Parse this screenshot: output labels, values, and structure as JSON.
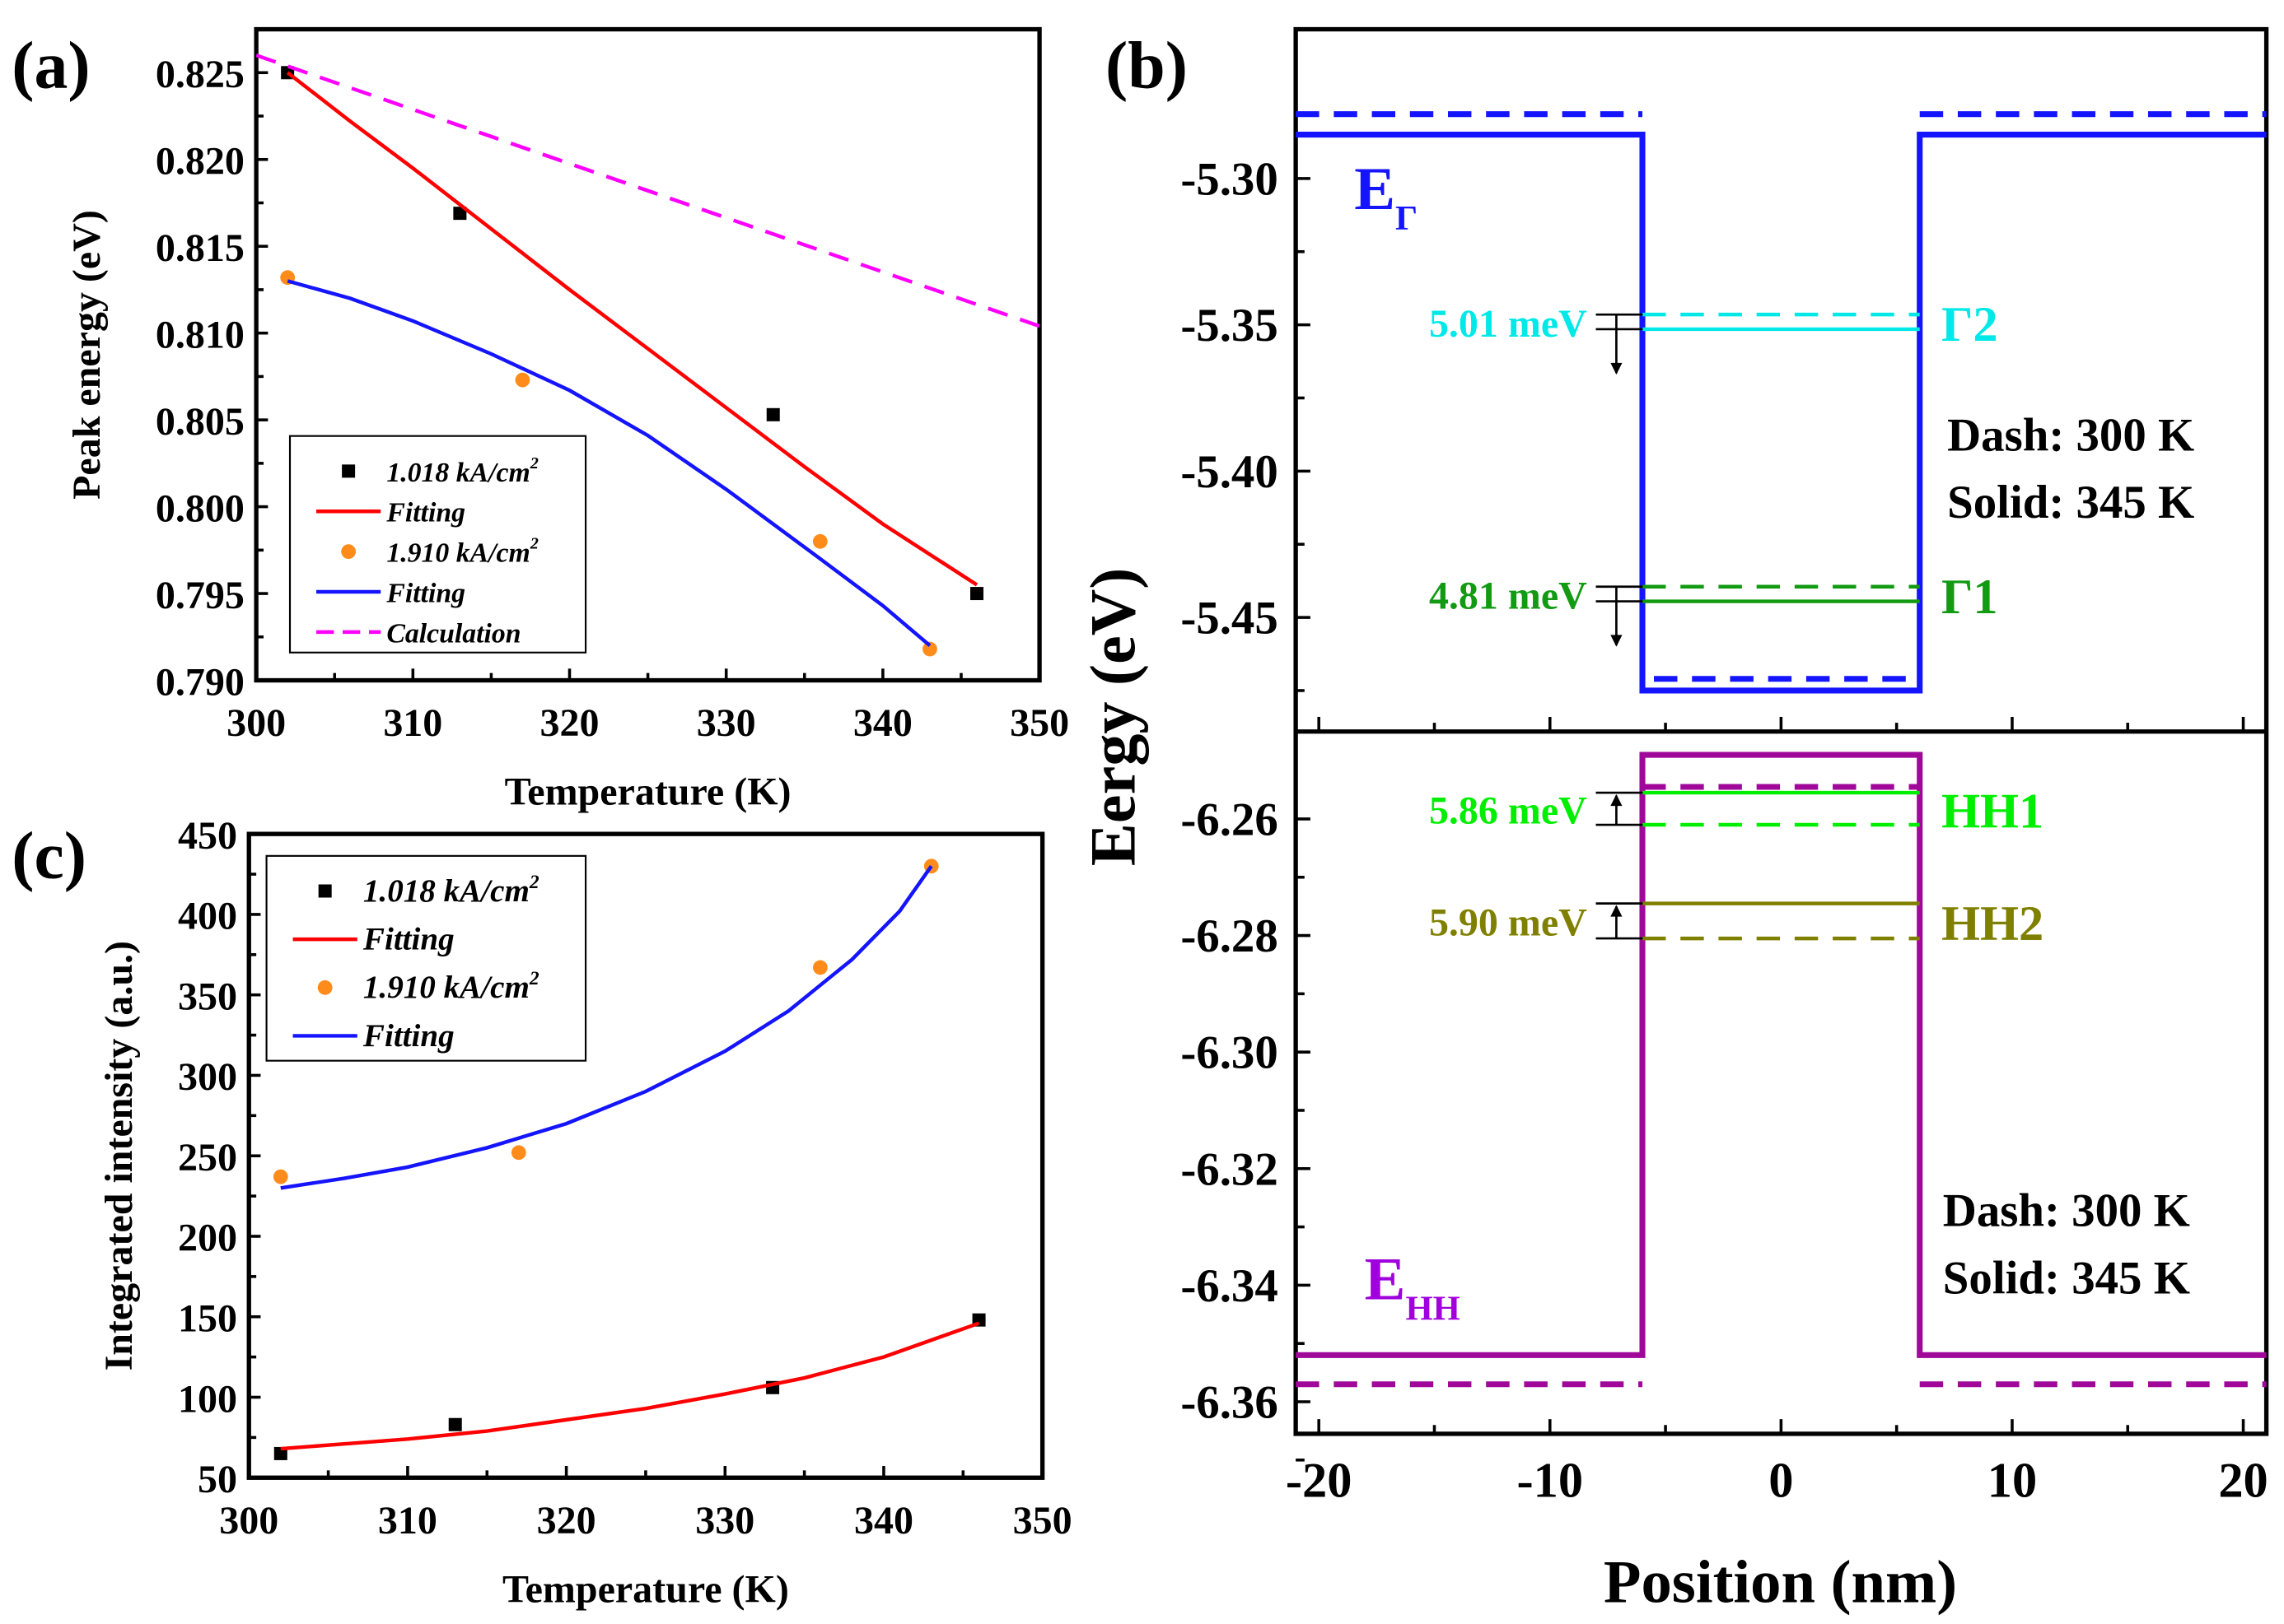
{
  "panel_labels": [
    "(a)",
    "(b)",
    "(c)"
  ],
  "colors": {
    "red": "#ff0000",
    "blue": "#1414ff",
    "magenta": "#ff00ff",
    "orange": "#ff8c1a",
    "cyan": "#00e8e8",
    "green": "#129a12",
    "lime": "#00ee00",
    "olive": "#808000",
    "purple": "#a0089a",
    "violet": "#a000dd"
  },
  "chart_data": [
    {
      "id": "a",
      "type": "scatter",
      "xlabel": "Temperature (K)",
      "ylabel": "Peak energy (eV)",
      "xlim": [
        300,
        350
      ],
      "ylim": [
        0.79,
        0.8275
      ],
      "xticks": [
        "300",
        "310",
        "320",
        "330",
        "340",
        "350"
      ],
      "yticks": [
        "0.790",
        "0.795",
        "0.800",
        "0.805",
        "0.810",
        "0.815",
        "0.820",
        "0.825"
      ],
      "legend_position": "bottom-left",
      "series": [
        {
          "name": "1.018 kA/cm",
          "sup": "2",
          "kind": "points",
          "marker": "square",
          "color": "#000000",
          "x": [
            302,
            313,
            333,
            346
          ],
          "y": [
            0.825,
            0.8169,
            0.8053,
            0.795
          ]
        },
        {
          "name": "Fitting",
          "kind": "line",
          "color": "#ff0000",
          "x": [
            302,
            306,
            310,
            315,
            320,
            325,
            330,
            335,
            340,
            346
          ],
          "y": [
            0.825,
            0.8222,
            0.8195,
            0.816,
            0.8125,
            0.8091,
            0.8057,
            0.8023,
            0.799,
            0.7955
          ]
        },
        {
          "name": "1.910 kA/cm",
          "sup": "2",
          "kind": "points",
          "marker": "circle",
          "color": "#ff8c1a",
          "x": [
            302,
            317,
            336,
            343
          ],
          "y": [
            0.8132,
            0.8073,
            0.798,
            0.7918
          ]
        },
        {
          "name": "Fitting",
          "kind": "line",
          "color": "#1414ff",
          "x": [
            302,
            306,
            310,
            315,
            320,
            325,
            330,
            336,
            340,
            343
          ],
          "y": [
            0.813,
            0.812,
            0.8107,
            0.8088,
            0.8067,
            0.8041,
            0.801,
            0.797,
            0.7943,
            0.792
          ]
        },
        {
          "name": "Calculation",
          "kind": "dash",
          "color": "#ff00ff",
          "x": [
            300,
            350
          ],
          "y": [
            0.826,
            0.8104
          ]
        }
      ]
    },
    {
      "id": "c",
      "type": "scatter",
      "xlabel": "Temperature (K)",
      "ylabel": "Integrated intensity (a.u.)",
      "xlim": [
        300,
        350
      ],
      "ylim": [
        50,
        450
      ],
      "xticks": [
        "300",
        "310",
        "320",
        "330",
        "340",
        "350"
      ],
      "yticks": [
        "50",
        "100",
        "150",
        "200",
        "250",
        "300",
        "350",
        "400",
        "450"
      ],
      "legend_position": "top-left",
      "series": [
        {
          "name": "1.018 kA/cm",
          "sup": "2",
          "kind": "points",
          "marker": "square",
          "color": "#000000",
          "x": [
            302,
            313,
            333,
            346
          ],
          "y": [
            65,
            83,
            106,
            148
          ]
        },
        {
          "name": "Fitting",
          "kind": "line",
          "color": "#ff0000",
          "x": [
            302,
            306,
            310,
            315,
            320,
            325,
            330,
            335,
            340,
            346
          ],
          "y": [
            68,
            71,
            74,
            79,
            86,
            93,
            102,
            112,
            125,
            146
          ]
        },
        {
          "name": "1.910 kA/cm",
          "sup": "2",
          "kind": "points",
          "marker": "circle",
          "color": "#ff8c1a",
          "x": [
            302,
            317,
            336,
            343
          ],
          "y": [
            237,
            252,
            367,
            430
          ]
        },
        {
          "name": "Fitting",
          "kind": "line",
          "color": "#1414ff",
          "x": [
            302,
            306,
            310,
            315,
            320,
            325,
            330,
            334,
            338,
            341,
            343
          ],
          "y": [
            230,
            236,
            243,
            255,
            270,
            290,
            315,
            340,
            372,
            402,
            430
          ]
        }
      ]
    },
    {
      "id": "b",
      "type": "line",
      "xlabel": "Position (nm)",
      "ylabel": "Eergy (eV)",
      "xlim": [
        -21,
        21
      ],
      "xticks": [
        "-20",
        "-10",
        "0",
        "10",
        "20"
      ],
      "top": {
        "ylim": [
          -5.489,
          -5.249
        ],
        "yticks": [
          "-5.30",
          "-5.35",
          "-5.40",
          "-5.45"
        ],
        "band_label": "E",
        "band_sub": "Γ",
        "lines": [
          {
            "name": "conduction-band-345K",
            "color": "#1414ff",
            "style": "solid",
            "x": [
              -21,
              -6,
              -6,
              6,
              6,
              21
            ],
            "y": [
              -5.285,
              -5.285,
              -5.475,
              -5.475,
              -5.285,
              -5.285
            ]
          },
          {
            "name": "conduction-band-300K-left",
            "color": "#1414ff",
            "style": "dash",
            "x": [
              -21,
              -6
            ],
            "y": [
              -5.278,
              -5.278
            ]
          },
          {
            "name": "conduction-band-300K-right",
            "color": "#1414ff",
            "style": "dash",
            "x": [
              6,
              21
            ],
            "y": [
              -5.278,
              -5.278
            ]
          },
          {
            "name": "conduction-band-300K-well",
            "color": "#1414ff",
            "style": "dash",
            "x": [
              -5.5,
              5.5
            ],
            "y": [
              -5.471,
              -5.471
            ]
          },
          {
            "name": "gamma2-300K",
            "color": "#00e8e8",
            "style": "dash",
            "x": [
              -6,
              6
            ],
            "y": [
              -5.3465,
              -5.3465
            ]
          },
          {
            "name": "gamma2-345K",
            "color": "#00e8e8",
            "style": "solid",
            "x": [
              -6,
              6
            ],
            "y": [
              -5.3515,
              -5.3515
            ]
          },
          {
            "name": "gamma1-300K",
            "color": "#129a12",
            "style": "dash",
            "x": [
              -6,
              6
            ],
            "y": [
              -5.4395,
              -5.4395
            ]
          },
          {
            "name": "gamma1-345K",
            "color": "#129a12",
            "style": "solid",
            "x": [
              -6,
              6
            ],
            "y": [
              -5.4445,
              -5.4445
            ]
          }
        ],
        "levels": [
          {
            "label": "Γ2",
            "shift": "5.01 meV",
            "color": "#00e8e8",
            "y_dash": -5.3465,
            "y_solid": -5.3515,
            "dir": "down"
          },
          {
            "label": "Γ1",
            "shift": "4.81 meV",
            "color": "#129a12",
            "y_dash": -5.4395,
            "y_solid": -5.4445,
            "dir": "down"
          }
        ],
        "legend": [
          "Dash: 300 K",
          "Solid: 345 K"
        ]
      },
      "bottom": {
        "ylim": [
          -6.3655,
          -6.245
        ],
        "yticks": [
          "-6.26",
          "-6.28",
          "-6.30",
          "-6.32",
          "-6.34",
          "-6.36"
        ],
        "band_label": "E",
        "band_sub": "HH",
        "lines": [
          {
            "name": "heavy-hole-band-345K",
            "color": "#a0089a",
            "style": "solid",
            "x": [
              -21,
              -6,
              -6,
              6,
              6,
              21
            ],
            "y": [
              -6.352,
              -6.352,
              -6.249,
              -6.249,
              -6.352,
              -6.352
            ]
          },
          {
            "name": "heavy-hole-band-300K-left",
            "color": "#a0089a",
            "style": "dash",
            "x": [
              -21,
              -6
            ],
            "y": [
              -6.357,
              -6.357
            ]
          },
          {
            "name": "heavy-hole-band-300K-right",
            "color": "#a0089a",
            "style": "dash",
            "x": [
              6,
              21
            ],
            "y": [
              -6.357,
              -6.357
            ]
          },
          {
            "name": "heavy-hole-band-300K-top",
            "color": "#a0089a",
            "style": "dash",
            "x": [
              -6,
              6
            ],
            "y": [
              -6.2545,
              -6.2545
            ]
          },
          {
            "name": "hh1-345K",
            "color": "#00ee00",
            "style": "solid",
            "x": [
              -6,
              6
            ],
            "y": [
              -6.2555,
              -6.2555
            ]
          },
          {
            "name": "hh1-300K",
            "color": "#00ee00",
            "style": "dash",
            "x": [
              -6,
              6
            ],
            "y": [
              -6.261,
              -6.261
            ]
          },
          {
            "name": "hh2-345K",
            "color": "#808000",
            "style": "solid",
            "x": [
              -6,
              6
            ],
            "y": [
              -6.2745,
              -6.2745
            ]
          },
          {
            "name": "hh2-300K",
            "color": "#808000",
            "style": "dash",
            "x": [
              -6,
              6
            ],
            "y": [
              -6.2805,
              -6.2805
            ]
          }
        ],
        "levels": [
          {
            "label": "HH1",
            "shift": "5.86 meV",
            "color": "#00ee00",
            "y_dash": -6.261,
            "y_solid": -6.2555,
            "dir": "up"
          },
          {
            "label": "HH2",
            "shift": "5.90 meV",
            "color": "#808000",
            "y_dash": -6.2805,
            "y_solid": -6.2745,
            "dir": "up"
          }
        ],
        "legend": [
          "Dash: 300 K",
          "Solid: 345 K"
        ]
      }
    }
  ]
}
